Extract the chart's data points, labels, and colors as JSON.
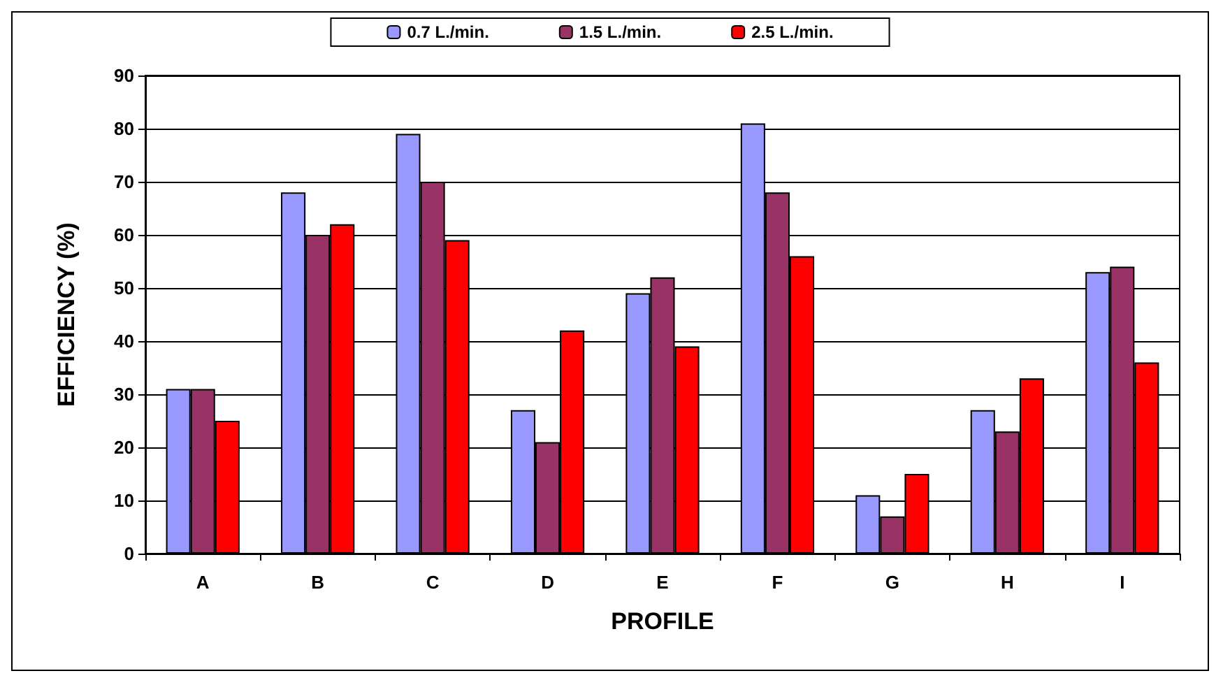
{
  "chart_data": {
    "type": "bar",
    "xlabel": "PROFILE",
    "ylabel": "EFFICIENCY (%)",
    "categories": [
      "A",
      "B",
      "C",
      "D",
      "E",
      "F",
      "G",
      "H",
      "I"
    ],
    "series": [
      {
        "name": "0.7 L./min.",
        "color": "#9999ff",
        "values": [
          31,
          68,
          79,
          27,
          49,
          81,
          11,
          27,
          53
        ]
      },
      {
        "name": "1.5 L./min.",
        "color": "#993366",
        "values": [
          31,
          60,
          70,
          21,
          52,
          68,
          7,
          23,
          54
        ]
      },
      {
        "name": "2.5 L./min.",
        "color": "#ff0000",
        "values": [
          25,
          62,
          59,
          42,
          39,
          56,
          15,
          33,
          36
        ]
      }
    ],
    "ylim": [
      0,
      90
    ],
    "yticks": [
      0,
      10,
      20,
      30,
      40,
      50,
      60,
      70,
      80,
      90
    ],
    "grid": "y",
    "legend": "top"
  }
}
